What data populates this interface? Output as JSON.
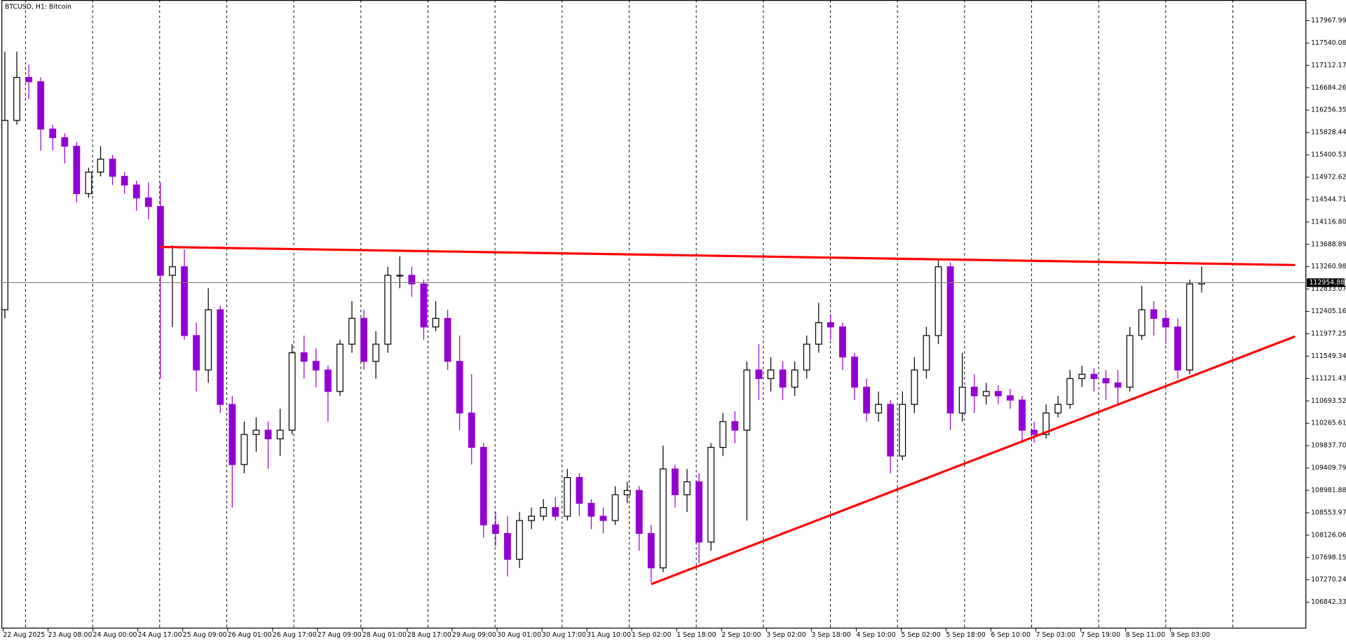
{
  "chart_data": {
    "type": "candlestick",
    "title": "BTCUSD, H1:  Bitcoin",
    "up_color": "#000000",
    "down_color": "#9400d3",
    "xlabels": [
      "22 Aug 2025",
      "23 Aug 08:00",
      "24 Aug 00:00",
      "24 Aug 17:00",
      "25 Aug 09:00",
      "26 Aug 01:00",
      "26 Aug 17:00",
      "27 Aug 09:00",
      "28 Aug 01:00",
      "28 Aug 17:00",
      "29 Aug 09:00",
      "30 Aug 01:00",
      "30 Aug 17:00",
      "31 Aug 10:00",
      "1 Sep 02:00",
      "1 Sep 18:00",
      "2 Sep 10:00",
      "3 Sep 02:00",
      "3 Sep 18:00",
      "4 Sep 10:00",
      "5 Sep 02:00",
      "5 Sep 18:00",
      "6 Sep 10:00",
      "7 Sep 03:00",
      "7 Sep 19:00",
      "8 Sep 11:00",
      "9 Sep 03:00"
    ],
    "open": [
      112437,
      116059,
      116882,
      116799,
      115894,
      115729,
      115565,
      114659,
      115071,
      115318,
      114989,
      114824,
      114577,
      114413,
      113096,
      113260,
      111944,
      111285,
      112437,
      110627,
      109475,
      110051,
      110133,
      109968,
      110133,
      111614,
      111450,
      111285,
      110874,
      111779,
      112273,
      111450,
      111779,
      113096,
      113096,
      112931,
      112108,
      112273,
      111450,
      110462,
      109804,
      108322,
      108158,
      107664,
      108405,
      108487,
      108652,
      108487,
      109228,
      108734,
      108487,
      108405,
      108898,
      108981,
      108158,
      107499,
      109392,
      108898,
      109145,
      107993,
      109804,
      110298,
      110133,
      111285,
      111121,
      111285,
      110956,
      111285,
      111779,
      112190,
      112108,
      111532,
      110956,
      110462,
      110627,
      109639,
      110627,
      111285,
      111944,
      113260,
      110462,
      110956,
      110791,
      110874,
      110791,
      110709,
      110133,
      110051,
      110462,
      110627,
      111121,
      111203,
      111121,
      111038,
      110956,
      111944,
      112437,
      112273,
      112108,
      111285,
      112931
    ],
    "high": [
      117375,
      117375,
      117128,
      116882,
      115976,
      115812,
      115647,
      115153,
      115565,
      115400,
      115071,
      114906,
      114873,
      114873,
      113672,
      113590,
      112190,
      112849,
      112520,
      110791,
      110298,
      110380,
      110298,
      110544,
      111779,
      111944,
      111697,
      111367,
      111861,
      112602,
      112437,
      112026,
      113260,
      113458,
      113260,
      113013,
      112602,
      112437,
      111944,
      111203,
      109886,
      108569,
      108487,
      108569,
      108652,
      108816,
      108849,
      109392,
      109310,
      108816,
      108652,
      109063,
      109145,
      109063,
      108322,
      109837,
      109475,
      109392,
      109310,
      109886,
      110462,
      110495,
      111450,
      111779,
      111532,
      111450,
      111450,
      111944,
      112569,
      112355,
      112190,
      111614,
      111121,
      110874,
      110709,
      110874,
      111532,
      112108,
      113392,
      113343,
      111614,
      111203,
      111038,
      110989,
      110923,
      110791,
      110298,
      110627,
      110791,
      111285,
      111367,
      111318,
      111285,
      111285,
      112108,
      112898,
      112602,
      112437,
      112273,
      113013,
      113260
    ],
    "low": [
      112273,
      115976,
      116470,
      115483,
      115483,
      115236,
      114495,
      114577,
      114989,
      114824,
      114659,
      114330,
      114166,
      111121,
      112108,
      111861,
      110874,
      111038,
      110462,
      108652,
      109310,
      109721,
      109392,
      109639,
      110051,
      111121,
      110956,
      110298,
      110791,
      111614,
      111285,
      111121,
      111614,
      112849,
      112684,
      111861,
      112026,
      111285,
      110133,
      109475,
      108075,
      107911,
      107335,
      107499,
      108240,
      108405,
      108405,
      108405,
      108487,
      108240,
      108158,
      108322,
      108734,
      107829,
      107220,
      107417,
      108652,
      108569,
      107582,
      107829,
      109639,
      109886,
      108405,
      110709,
      110874,
      110709,
      110791,
      111121,
      111614,
      111861,
      111285,
      110709,
      110298,
      110298,
      109310,
      109557,
      110462,
      111121,
      111779,
      110133,
      110298,
      110462,
      110627,
      110627,
      110544,
      109935,
      109886,
      109968,
      110380,
      110544,
      110956,
      110874,
      110709,
      110627,
      110874,
      111861,
      111944,
      111779,
      111121,
      111203,
      112767
    ],
    "close": [
      116059,
      116882,
      116799,
      115894,
      115729,
      115565,
      114659,
      115071,
      115318,
      114989,
      114824,
      114577,
      114413,
      113096,
      113260,
      111944,
      111285,
      112437,
      110627,
      109475,
      110051,
      110133,
      109968,
      110133,
      111614,
      111450,
      111285,
      110874,
      111779,
      112273,
      111450,
      111779,
      113096,
      113096,
      112931,
      112108,
      112273,
      111450,
      110462,
      109804,
      108322,
      108158,
      107664,
      108405,
      108487,
      108652,
      108487,
      109228,
      108734,
      108487,
      108405,
      108898,
      108981,
      108158,
      107499,
      109392,
      108898,
      109145,
      107993,
      109804,
      110298,
      110133,
      111285,
      111121,
      111285,
      110956,
      111285,
      111779,
      112190,
      112108,
      111532,
      110956,
      110462,
      110627,
      109639,
      110627,
      111285,
      111944,
      113260,
      110462,
      110956,
      110791,
      110874,
      110791,
      110709,
      110133,
      110051,
      110462,
      110627,
      111121,
      111203,
      111121,
      111038,
      110956,
      111944,
      112437,
      112273,
      112108,
      111285,
      112931,
      112954.88
    ],
    "ylim": [
      106347,
      118363
    ],
    "yticks": [
      117967.99,
      117540.08,
      117112.17,
      116684.26,
      116256.35,
      115828.44,
      115400.53,
      114972.62,
      114544.71,
      {
        "value": 114116.8,
        "label": "114116.80"
      },
      113688.89,
      113260.98,
      112833.07,
      112405.16,
      111977.25,
      111549.34,
      111121.43,
      110693.52,
      110265.61,
      {
        "value": 109837.7,
        "label": "109837.70"
      },
      109409.79,
      108981.88,
      108553.97,
      108126.06,
      107698.15,
      107270.24,
      106842.33
    ],
    "trendlines": [
      {
        "color": "#ff0000",
        "x": [
          13,
          107.8
        ],
        "y": [
          113639,
          113293
        ]
      },
      {
        "color": "#ff0000",
        "x": [
          54,
          107.8
        ],
        "y": [
          107187,
          111927
        ]
      }
    ]
  }
}
